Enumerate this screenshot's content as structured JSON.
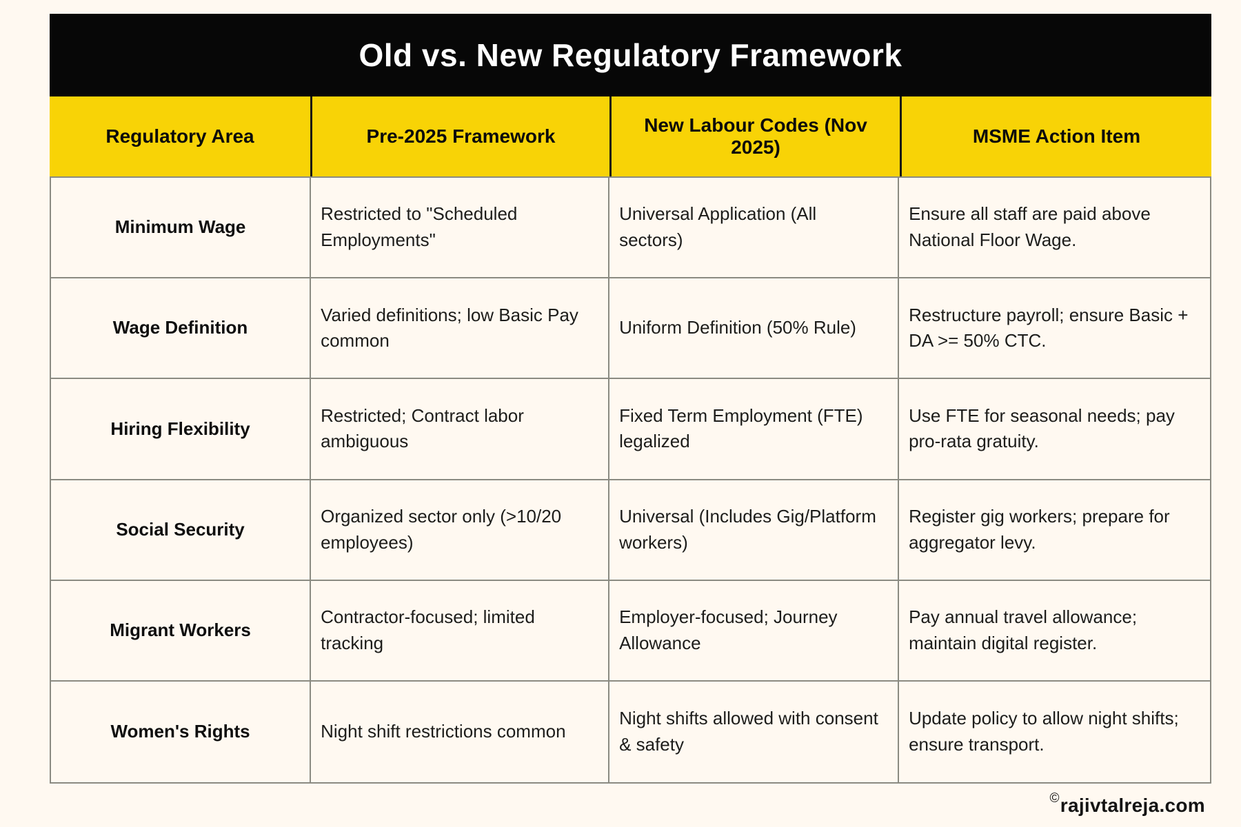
{
  "page": {
    "background": "#FFF9F1",
    "watermark": {
      "symbol": "©",
      "text": "rajivtalreja.com"
    }
  },
  "table": {
    "title": "Old vs. New Regulatory Framework",
    "title_bar": {
      "bg": "#070707",
      "text_color": "#FFFFFF"
    },
    "header": {
      "bg": "#F8D306",
      "columns": [
        "Regulatory Area",
        "Pre-2025 Framework",
        "New Labour Codes (Nov 2025)",
        "MSME Action Item"
      ]
    },
    "border_color": "#8b8b82",
    "rows": [
      {
        "cells": [
          "Minimum Wage",
          "Restricted to \"Scheduled Employments\"",
          "Universal Application (All sectors)",
          "Ensure all staff are paid above National Floor Wage."
        ]
      },
      {
        "cells": [
          "Wage Definition",
          "Varied definitions; low Basic Pay common",
          "Uniform Definition (50% Rule)",
          "Restructure payroll; ensure Basic + DA >= 50% CTC."
        ]
      },
      {
        "cells": [
          "Hiring Flexibility",
          "Restricted; Contract labor ambiguous",
          "Fixed Term Employment (FTE) legalized",
          "Use FTE for seasonal needs; pay pro-rata gratuity."
        ]
      },
      {
        "cells": [
          "Social Security",
          "Organized sector only (>10/20 employees)",
          "Universal (Includes Gig/Platform workers)",
          "Register gig workers; prepare for aggregator levy."
        ]
      },
      {
        "cells": [
          "Migrant Workers",
          "Contractor-focused; limited tracking",
          "Employer-focused; Journey Allowance",
          "Pay annual travel allowance; maintain digital register."
        ]
      },
      {
        "cells": [
          "Women's Rights",
          "Night shift restrictions common",
          "Night shifts allowed with consent & safety",
          "Update policy to allow night shifts; ensure transport."
        ]
      }
    ]
  },
  "chart_data": {
    "type": "table",
    "title": "Old vs. New Regulatory Framework",
    "columns": [
      "Regulatory Area",
      "Pre-2025 Framework",
      "New Labour Codes (Nov 2025)",
      "MSME Action Item"
    ],
    "rows": [
      [
        "Minimum Wage",
        "Restricted to \"Scheduled Employments\"",
        "Universal Application (All sectors)",
        "Ensure all staff are paid above National Floor Wage."
      ],
      [
        "Wage Definition",
        "Varied definitions; low Basic Pay common",
        "Uniform Definition (50% Rule)",
        "Restructure payroll; ensure Basic + DA >= 50% CTC."
      ],
      [
        "Hiring Flexibility",
        "Restricted; Contract labor ambiguous",
        "Fixed Term Employment (FTE) legalized",
        "Use FTE for seasonal needs; pay pro-rata gratuity."
      ],
      [
        "Social Security",
        "Organized sector only (>10/20 employees)",
        "Universal (Includes Gig/Platform workers)",
        "Register gig workers; prepare for aggregator levy."
      ],
      [
        "Migrant Workers",
        "Contractor-focused; limited tracking",
        "Employer-focused; Journey Allowance",
        "Pay annual travel allowance; maintain digital register."
      ],
      [
        "Women's Rights",
        "Night shift restrictions common",
        "Night shifts allowed with consent & safety",
        "Update policy to allow night shifts; ensure transport."
      ]
    ],
    "layout": {
      "header_bg": "#F8D306",
      "title_bar_bg": "#070707",
      "body_bg": "#FFF9F1",
      "grid": "on"
    }
  }
}
